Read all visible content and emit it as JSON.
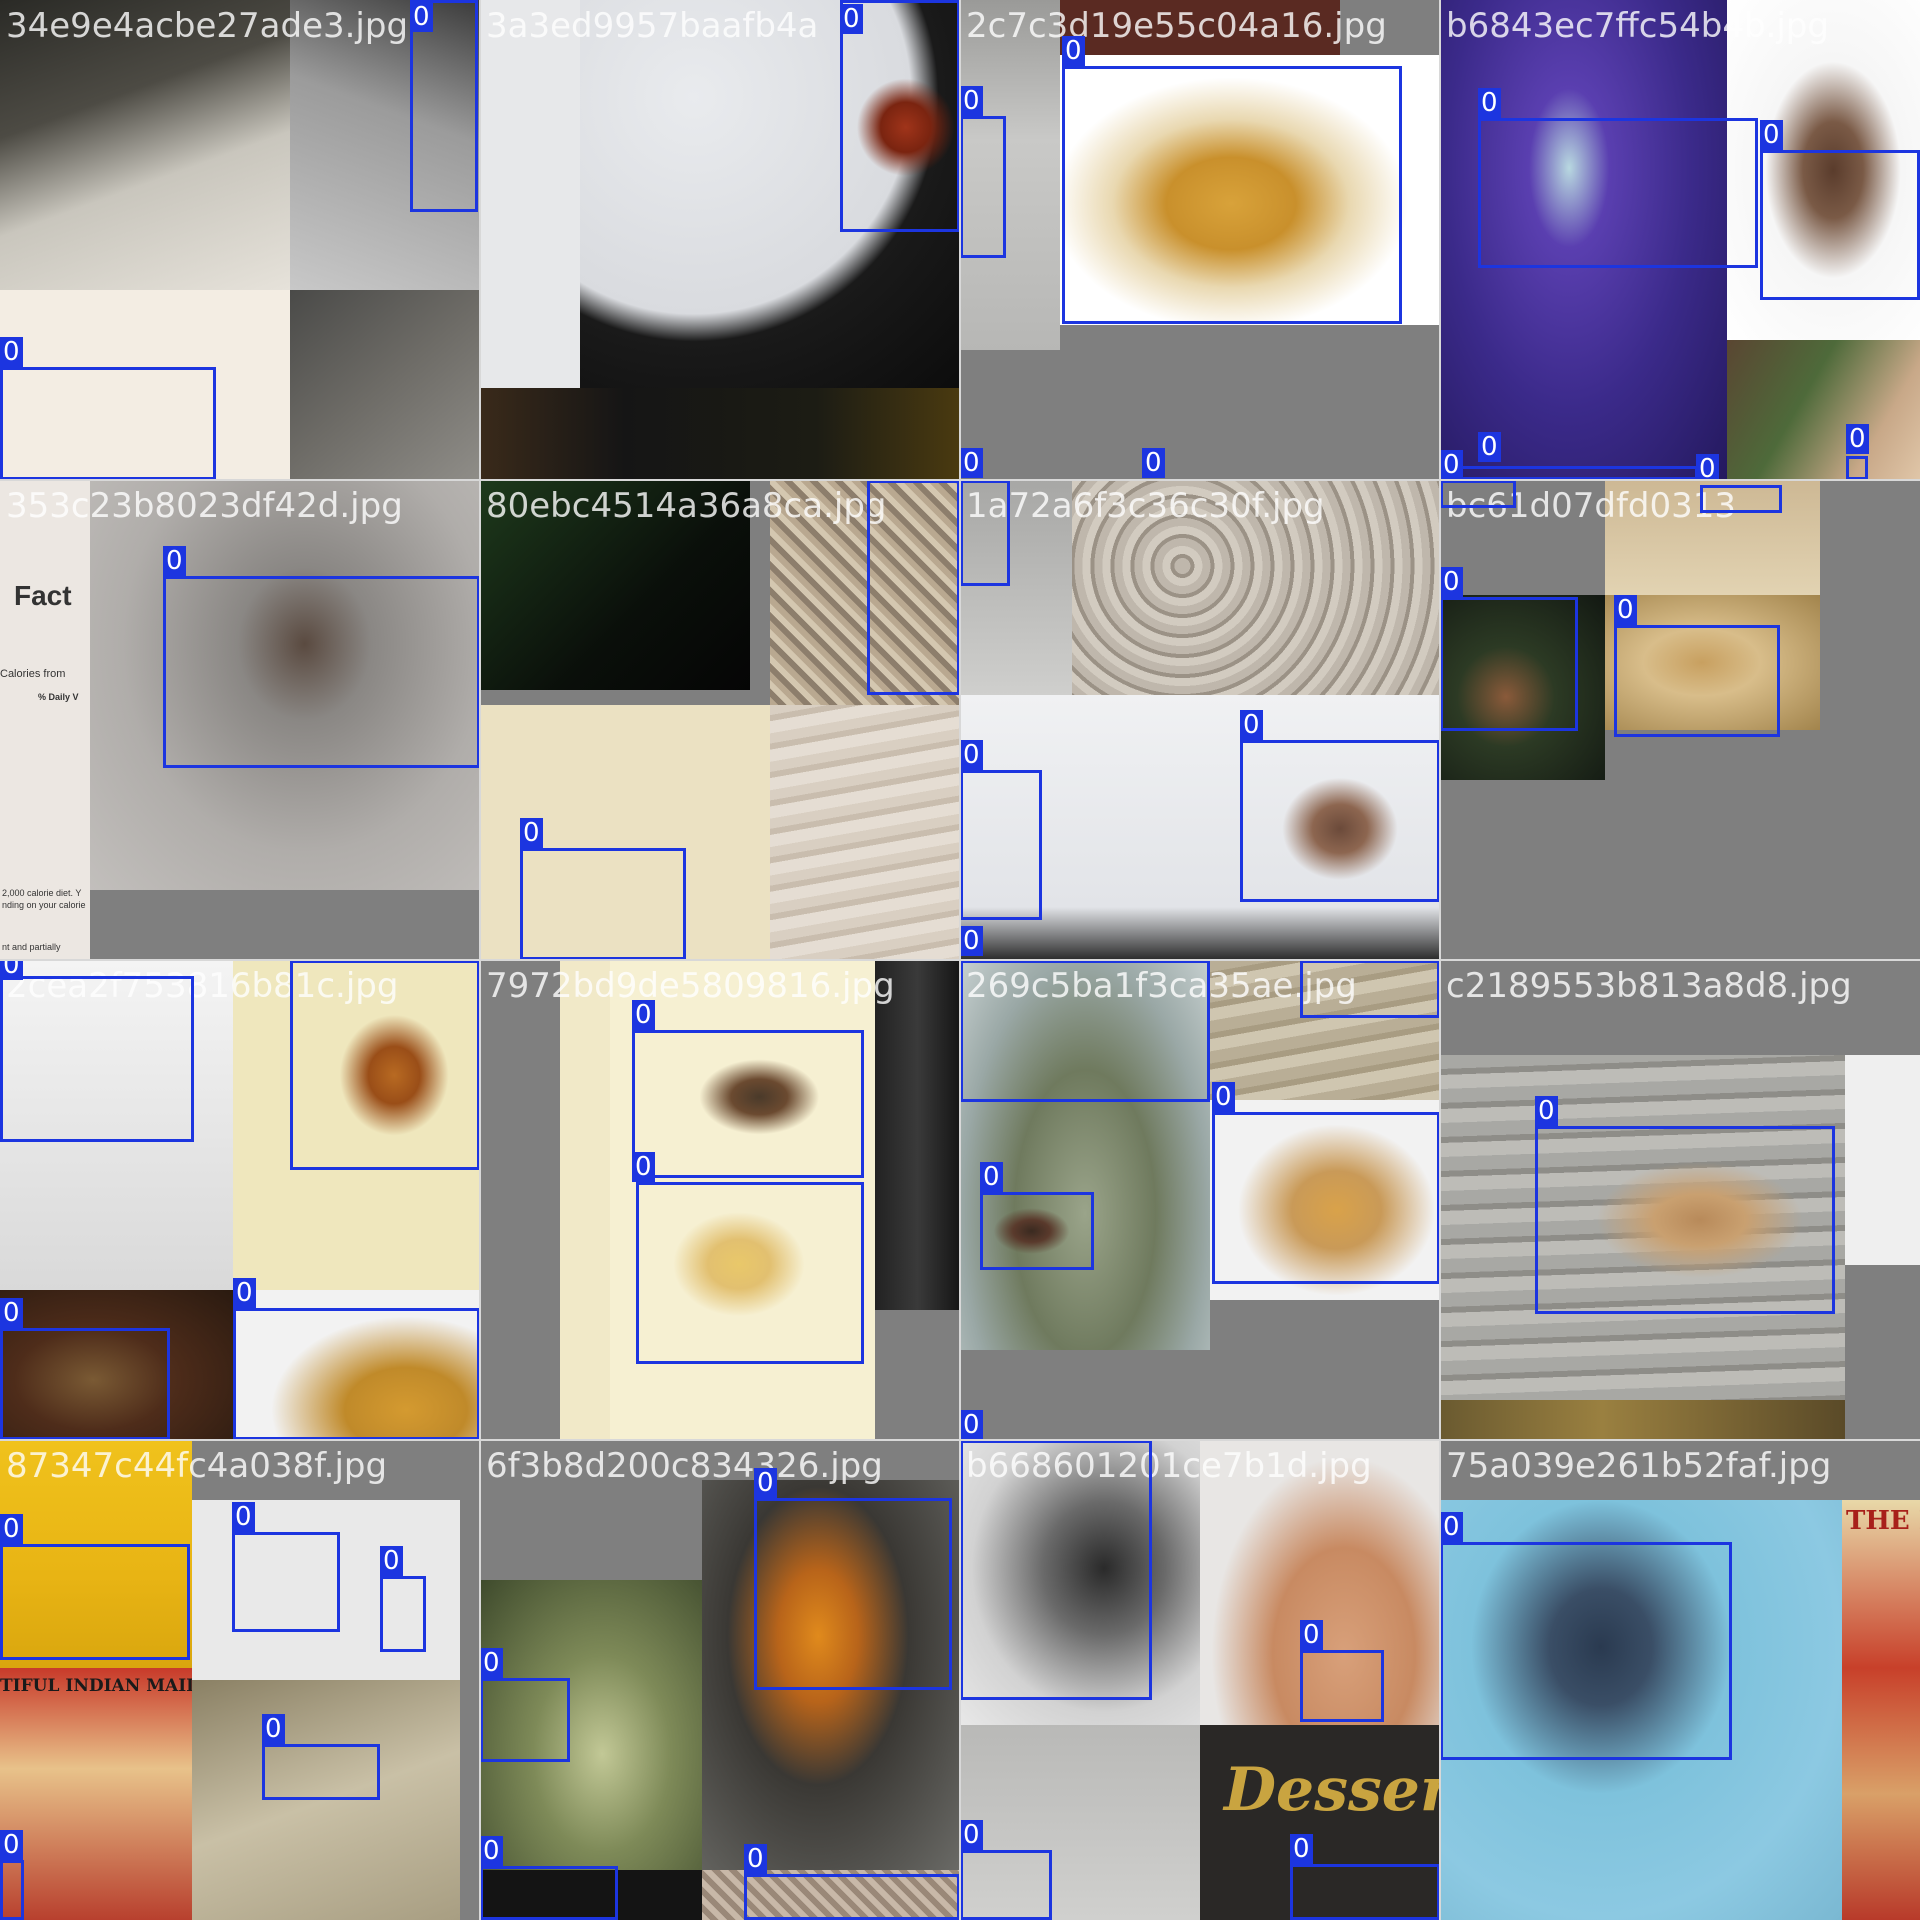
{
  "mosaic": {
    "box_color": "#1c35e0",
    "class_label": "0",
    "tiles": [
      {
        "filename": "34e9e4acbe27ade3.jpg"
      },
      {
        "filename": "3a3ed9957baafb4a"
      },
      {
        "filename": "2c7c3d19e55c04a16.jpg"
      },
      {
        "filename": "b6843ec7ffc54b4b.jpg"
      },
      {
        "filename": "353c23b8023df42d.jpg"
      },
      {
        "filename": "80ebc4514a36a8ca.jpg"
      },
      {
        "filename": "1a72a6f3c36c30f.jpg"
      },
      {
        "filename": "bc61d07dfd0313"
      },
      {
        "filename": "2cea2f753816b81c.jpg"
      },
      {
        "filename": "7972bd9de5809816.jpg"
      },
      {
        "filename": "269c5ba1f3ca35ae.jpg"
      },
      {
        "filename": "c2189553b813a8d8.jpg"
      },
      {
        "filename": "87347c44fc4a038f.jpg"
      },
      {
        "filename": "6f3b8d200c834326.jpg"
      },
      {
        "filename": "b668601201ce7b1d.jpg"
      },
      {
        "filename": "75a039e261b52faf.jpg"
      }
    ],
    "texts": {
      "fact": "Fact",
      "calories_from": "Calories from",
      "daily": "% Daily V",
      "diet1": "2,000 calorie diet. Y",
      "diet2": "nding on your calorie",
      "partially": "nt and partially",
      "maidens": "TIFUL INDIAN MAIDENS",
      "dessert": "Desser",
      "the_b": "THE B"
    }
  }
}
